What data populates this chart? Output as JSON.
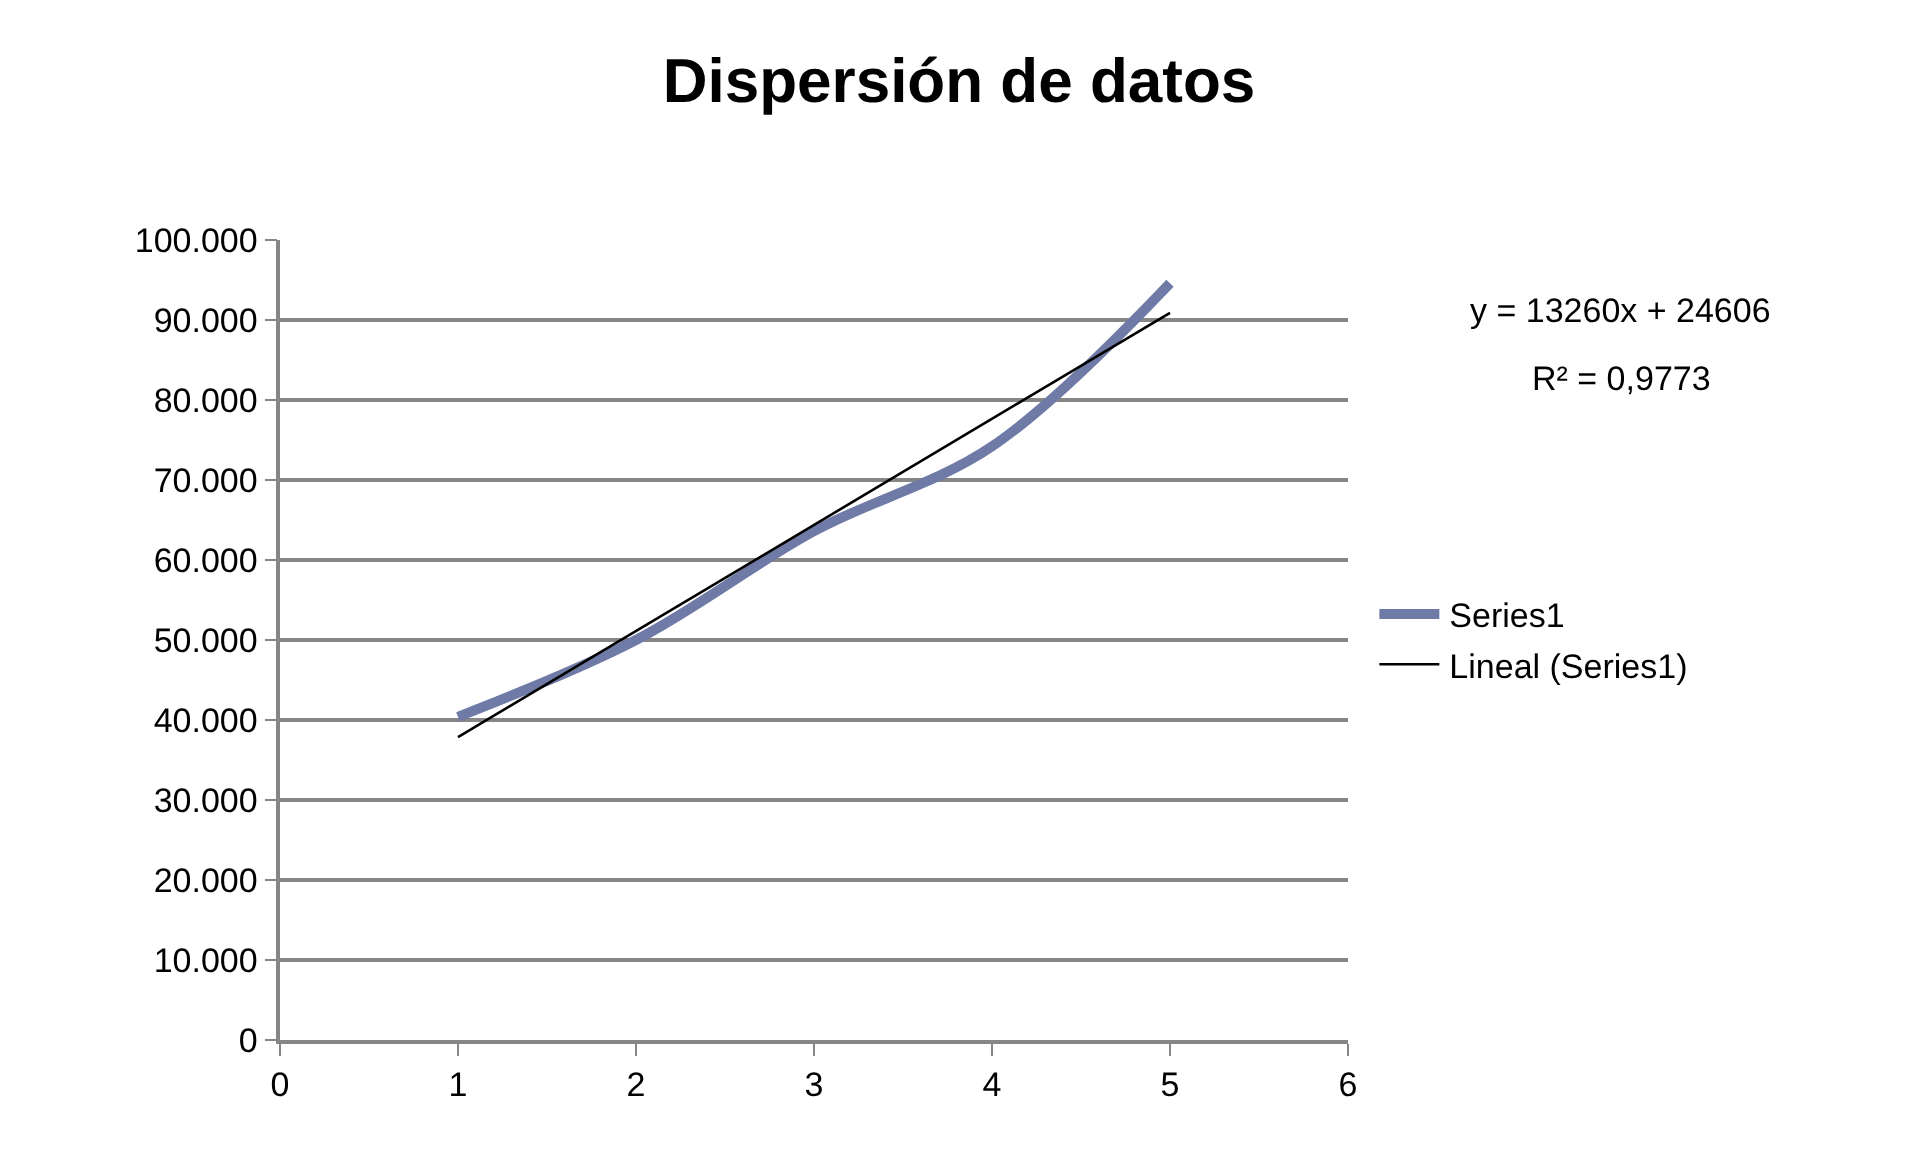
{
  "chart_data": {
    "type": "line",
    "title": "Dispersión de datos",
    "x": [
      1,
      2,
      3,
      4,
      5
    ],
    "series": [
      {
        "name": "Series1",
        "color": "#6f7ba6",
        "values": [
          40400,
          50000,
          63600,
          74200,
          94600
        ]
      },
      {
        "name": "Lineal (Series1)",
        "color": "#000000",
        "x": [
          1,
          5
        ],
        "values": [
          37866,
          90906
        ]
      }
    ],
    "xlim": [
      0,
      6
    ],
    "xticks": [
      0,
      1,
      2,
      3,
      4,
      5,
      6
    ],
    "ylim": [
      0,
      100000
    ],
    "yticks": [
      {
        "value": 0,
        "label": "0"
      },
      {
        "value": 10000,
        "label": "10.000"
      },
      {
        "value": 20000,
        "label": "20.000"
      },
      {
        "value": 30000,
        "label": "30.000"
      },
      {
        "value": 40000,
        "label": "40.000"
      },
      {
        "value": 50000,
        "label": "50.000"
      },
      {
        "value": 60000,
        "label": "60.000"
      },
      {
        "value": 70000,
        "label": "70.000"
      },
      {
        "value": 80000,
        "label": "80.000"
      },
      {
        "value": 90000,
        "label": "90.000"
      },
      {
        "value": 100000,
        "label": "100.000"
      }
    ],
    "annotations": [
      "y = 13260x + 24606",
      "R² = 0,9773"
    ],
    "grid": "y",
    "legend": "right",
    "marker": "none"
  }
}
